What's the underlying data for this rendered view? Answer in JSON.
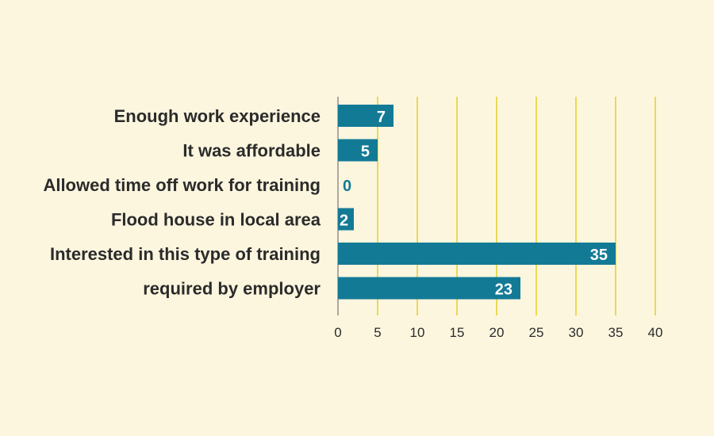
{
  "chart_data": {
    "type": "bar",
    "orientation": "horizontal",
    "title": "",
    "xlabel": "",
    "ylabel": "",
    "categories": [
      "Enough work experience",
      "It was affordable",
      "Allowed time off work for training",
      "Flood house in local area",
      "Interested in this type of training",
      "required by employer"
    ],
    "values": [
      7,
      5,
      0,
      2,
      35,
      23
    ],
    "xlim": [
      0,
      40
    ],
    "xticks": [
      0,
      5,
      10,
      15,
      20,
      25,
      30,
      35,
      40
    ],
    "grid": true,
    "value_labels": true
  },
  "colors": {
    "background": "#fdf6df",
    "bar": "#137a96",
    "gridline": "#e4d234",
    "axis": "#888888",
    "text": "#2b2b2b",
    "bar_label": "#ffffff",
    "zero_label": "#137a96"
  }
}
